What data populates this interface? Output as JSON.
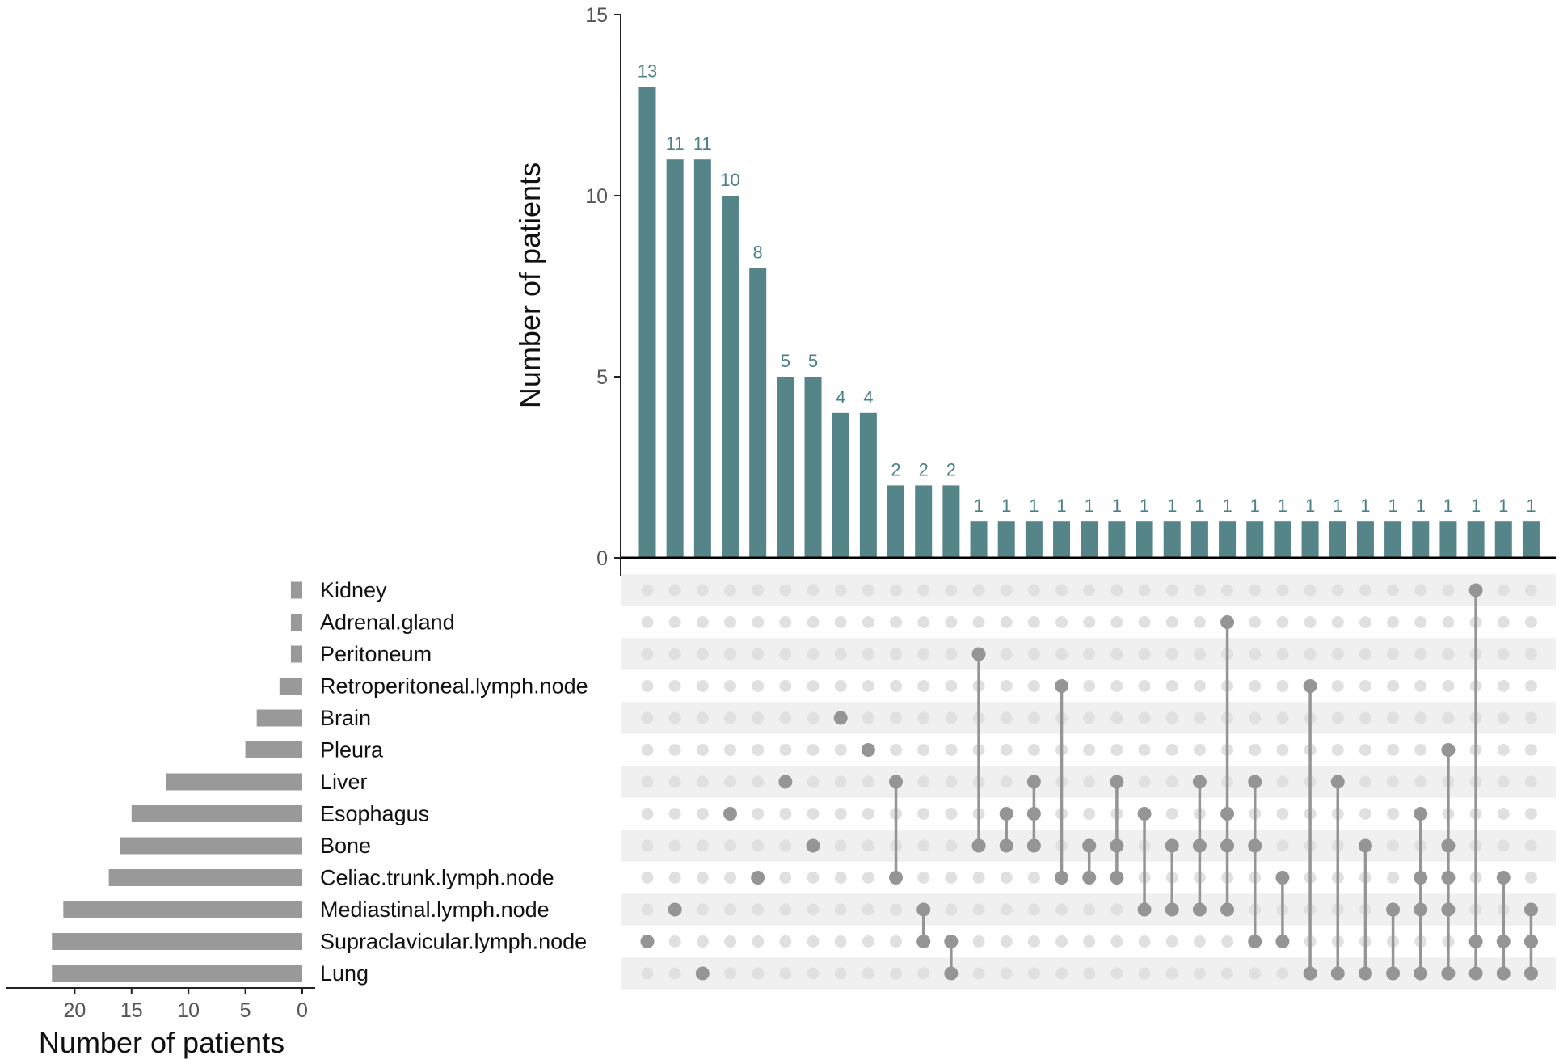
{
  "chart_data": {
    "type": "upset",
    "intersection_axis": {
      "label": "Number of patients",
      "ylim": [
        0,
        15
      ],
      "ticks": [
        0,
        5,
        10,
        15
      ]
    },
    "set_size_axis": {
      "label": "Number of patients",
      "xlim": [
        0,
        25
      ],
      "ticks": [
        20,
        15,
        10,
        5,
        0
      ]
    },
    "sets": [
      {
        "name": "Kidney",
        "size": 1
      },
      {
        "name": "Adrenal.gland",
        "size": 1
      },
      {
        "name": "Peritoneum",
        "size": 1
      },
      {
        "name": "Retroperitoneal.lymph.node",
        "size": 2
      },
      {
        "name": "Brain",
        "size": 4
      },
      {
        "name": "Pleura",
        "size": 5
      },
      {
        "name": "Liver",
        "size": 12
      },
      {
        "name": "Esophagus",
        "size": 15
      },
      {
        "name": "Bone",
        "size": 16
      },
      {
        "name": "Celiac.trunk.lymph.node",
        "size": 17
      },
      {
        "name": "Mediastinal.lymph.node",
        "size": 21
      },
      {
        "name": "Supraclavicular.lymph.node",
        "size": 22
      },
      {
        "name": "Lung",
        "size": 22
      }
    ],
    "intersections": [
      {
        "count": 13,
        "sets": [
          "Supraclavicular.lymph.node"
        ]
      },
      {
        "count": 11,
        "sets": [
          "Mediastinal.lymph.node"
        ]
      },
      {
        "count": 11,
        "sets": [
          "Lung"
        ]
      },
      {
        "count": 10,
        "sets": [
          "Esophagus"
        ]
      },
      {
        "count": 8,
        "sets": [
          "Celiac.trunk.lymph.node"
        ]
      },
      {
        "count": 5,
        "sets": [
          "Liver"
        ]
      },
      {
        "count": 5,
        "sets": [
          "Bone"
        ]
      },
      {
        "count": 4,
        "sets": [
          "Brain"
        ]
      },
      {
        "count": 4,
        "sets": [
          "Pleura"
        ]
      },
      {
        "count": 2,
        "sets": [
          "Liver",
          "Celiac.trunk.lymph.node"
        ]
      },
      {
        "count": 2,
        "sets": [
          "Mediastinal.lymph.node",
          "Supraclavicular.lymph.node"
        ]
      },
      {
        "count": 2,
        "sets": [
          "Supraclavicular.lymph.node",
          "Lung"
        ]
      },
      {
        "count": 1,
        "sets": [
          "Peritoneum",
          "Bone"
        ]
      },
      {
        "count": 1,
        "sets": [
          "Esophagus",
          "Bone"
        ]
      },
      {
        "count": 1,
        "sets": [
          "Liver",
          "Esophagus",
          "Bone"
        ]
      },
      {
        "count": 1,
        "sets": [
          "Retroperitoneal.lymph.node",
          "Celiac.trunk.lymph.node"
        ]
      },
      {
        "count": 1,
        "sets": [
          "Bone",
          "Celiac.trunk.lymph.node"
        ]
      },
      {
        "count": 1,
        "sets": [
          "Liver",
          "Bone",
          "Celiac.trunk.lymph.node"
        ]
      },
      {
        "count": 1,
        "sets": [
          "Esophagus",
          "Mediastinal.lymph.node"
        ]
      },
      {
        "count": 1,
        "sets": [
          "Bone",
          "Mediastinal.lymph.node"
        ]
      },
      {
        "count": 1,
        "sets": [
          "Liver",
          "Bone",
          "Mediastinal.lymph.node"
        ]
      },
      {
        "count": 1,
        "sets": [
          "Adrenal.gland",
          "Esophagus",
          "Bone",
          "Mediastinal.lymph.node"
        ]
      },
      {
        "count": 1,
        "sets": [
          "Liver",
          "Bone",
          "Supraclavicular.lymph.node"
        ]
      },
      {
        "count": 1,
        "sets": [
          "Celiac.trunk.lymph.node",
          "Supraclavicular.lymph.node"
        ]
      },
      {
        "count": 1,
        "sets": [
          "Retroperitoneal.lymph.node",
          "Lung"
        ]
      },
      {
        "count": 1,
        "sets": [
          "Liver",
          "Lung"
        ]
      },
      {
        "count": 1,
        "sets": [
          "Bone",
          "Lung"
        ]
      },
      {
        "count": 1,
        "sets": [
          "Mediastinal.lymph.node",
          "Lung"
        ]
      },
      {
        "count": 1,
        "sets": [
          "Esophagus",
          "Celiac.trunk.lymph.node",
          "Mediastinal.lymph.node",
          "Lung"
        ]
      },
      {
        "count": 1,
        "sets": [
          "Pleura",
          "Bone",
          "Celiac.trunk.lymph.node",
          "Mediastinal.lymph.node",
          "Lung"
        ]
      },
      {
        "count": 1,
        "sets": [
          "Kidney",
          "Supraclavicular.lymph.node",
          "Lung"
        ]
      },
      {
        "count": 1,
        "sets": [
          "Celiac.trunk.lymph.node",
          "Supraclavicular.lymph.node",
          "Lung"
        ]
      },
      {
        "count": 1,
        "sets": [
          "Mediastinal.lymph.node",
          "Supraclavicular.lymph.node",
          "Lung"
        ]
      }
    ],
    "colors": {
      "bar": "#558589",
      "bar_label": "#4b8087",
      "set_bar": "#999999",
      "dot_active": "#959595",
      "dot_inactive": "#e0e0e0",
      "row_shade": "#f0f0f0",
      "axis": "#222222"
    }
  }
}
